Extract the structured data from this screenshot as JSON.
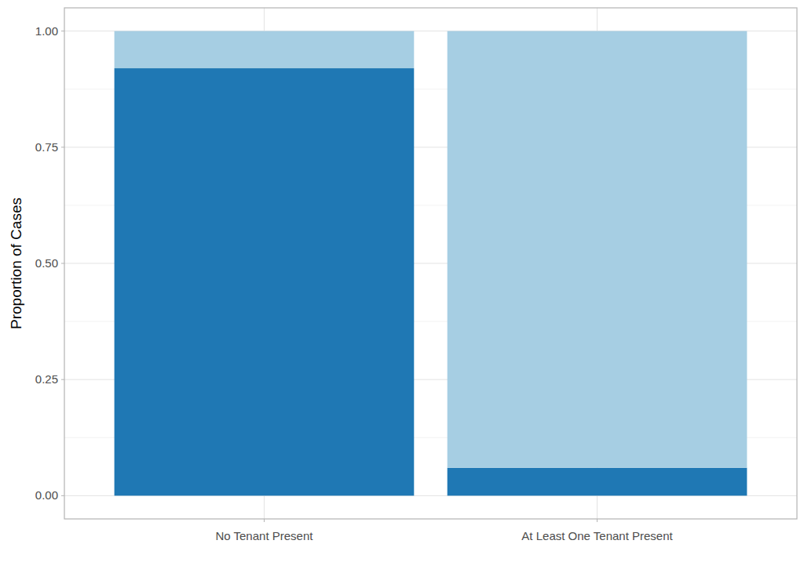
{
  "chart_data": {
    "type": "bar",
    "stacked": true,
    "grid": true,
    "y_label": "Proportion of Cases",
    "categories": [
      "No Tenant Present",
      "At Least One Tenant Present"
    ],
    "series": [
      {
        "color": "#1f78b4",
        "values": [
          0.92,
          0.06
        ]
      },
      {
        "color": "#a6cee3",
        "values": [
          0.08,
          0.94
        ]
      }
    ],
    "ylim": [
      -0.05,
      1.05
    ],
    "yticks": [
      {
        "value": 0,
        "label": "0.00"
      },
      {
        "value": 0.25,
        "label": "0.25"
      },
      {
        "value": 0.5,
        "label": "0.50"
      },
      {
        "value": 0.75,
        "label": "0.75"
      },
      {
        "value": 1,
        "label": "1.00"
      }
    ]
  }
}
